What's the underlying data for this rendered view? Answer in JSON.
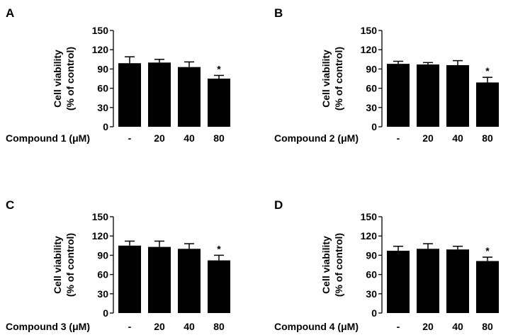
{
  "chart_data": [
    {
      "type": "bar",
      "panel_label": "A",
      "treatment_label": "Compound 1 (μM)",
      "categories": [
        "-",
        "20",
        "40",
        "80"
      ],
      "values": [
        99,
        100,
        93,
        75
      ],
      "errors": [
        10,
        5,
        8,
        5
      ],
      "significance": [
        "",
        "",
        "",
        "*"
      ],
      "ylabel": "Cell viability",
      "ylabel2": "(% of control)",
      "yticks": [
        "0",
        "30",
        "60",
        "90",
        "120",
        "150"
      ],
      "ylim": [
        0,
        150
      ]
    },
    {
      "type": "bar",
      "panel_label": "B",
      "treatment_label": "Compound 2 (μM)",
      "categories": [
        "-",
        "20",
        "40",
        "80"
      ],
      "values": [
        98,
        97,
        96,
        69
      ],
      "errors": [
        4,
        3,
        7,
        8
      ],
      "significance": [
        "",
        "",
        "",
        "*"
      ],
      "ylabel": "Cell viability",
      "ylabel2": "(% of control)",
      "yticks": [
        "0",
        "30",
        "60",
        "90",
        "120",
        "150"
      ],
      "ylim": [
        0,
        150
      ]
    },
    {
      "type": "bar",
      "panel_label": "C",
      "treatment_label": "Compound 3 (μM)",
      "categories": [
        "-",
        "20",
        "40",
        "80"
      ],
      "values": [
        105,
        103,
        100,
        82
      ],
      "errors": [
        7,
        9,
        8,
        8
      ],
      "significance": [
        "",
        "",
        "",
        "*"
      ],
      "ylabel": "Cell viability",
      "ylabel2": "(% of control)",
      "yticks": [
        "0",
        "30",
        "60",
        "90",
        "120",
        "150"
      ],
      "ylim": [
        0,
        150
      ]
    },
    {
      "type": "bar",
      "panel_label": "D",
      "treatment_label": "Compound 4 (μM)",
      "categories": [
        "-",
        "20",
        "40",
        "80"
      ],
      "values": [
        97,
        100,
        99,
        81
      ],
      "errors": [
        7,
        8,
        5,
        6
      ],
      "significance": [
        "",
        "",
        "",
        "*"
      ],
      "ylabel": "Cell viability",
      "ylabel2": "(% of control)",
      "yticks": [
        "0",
        "30",
        "60",
        "90",
        "120",
        "150"
      ],
      "ylim": [
        0,
        150
      ]
    }
  ],
  "colors": {
    "bar": "#000000",
    "axis": "#000000",
    "background": "#ffffff"
  }
}
